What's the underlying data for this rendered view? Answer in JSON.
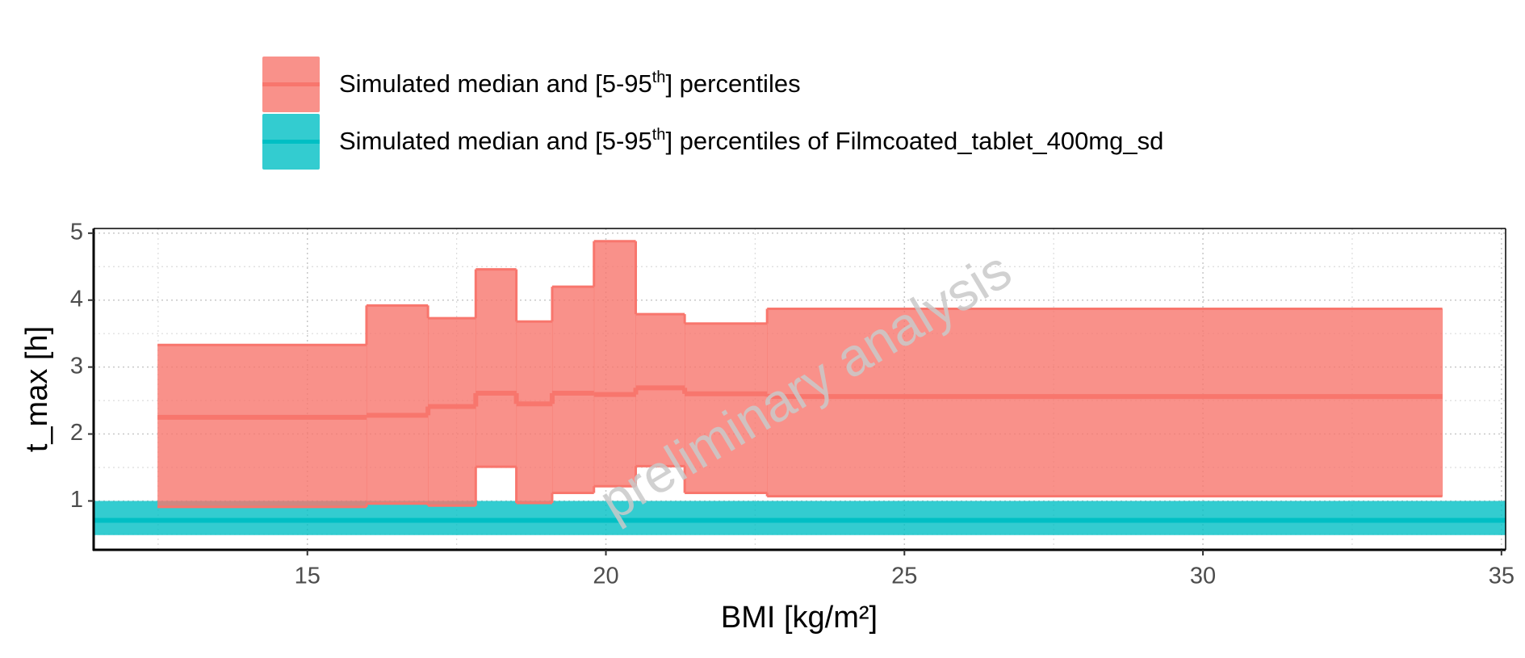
{
  "chart_data": {
    "type": "step_ribbon",
    "x_label": "BMI [kg/m²]",
    "y_label": "t_max [h]",
    "watermark": "preliminary analysis",
    "xlim": [
      11.42,
      35.07
    ],
    "ylim": [
      0.27,
      5.07
    ],
    "xticks": [
      15,
      20,
      25,
      30,
      35
    ],
    "yticks": [
      1,
      2,
      3,
      4,
      5
    ],
    "x_minor_grid": [
      12.5,
      17.5,
      22.5,
      27.5,
      32.5
    ],
    "y_minor_grid": [
      0.5,
      1.5,
      2.5,
      3.5,
      4.5
    ],
    "grid": true,
    "legend_position": "top",
    "x_edges": [
      12.49,
      15.99,
      17.02,
      17.82,
      18.5,
      19.1,
      19.8,
      20.5,
      21.32,
      22.7,
      34.01
    ],
    "series": [
      {
        "name": [
          "Simulated median and [5-95",
          "th",
          "] percentiles"
        ],
        "color": "#f8766d",
        "upper": [
          3.33,
          3.92,
          3.73,
          4.46,
          3.68,
          4.2,
          4.88,
          3.79,
          3.65,
          3.87
        ],
        "median": [
          2.25,
          2.28,
          2.41,
          2.61,
          2.45,
          2.61,
          2.59,
          2.69,
          2.6,
          2.56
        ],
        "lower": [
          0.91,
          0.96,
          0.93,
          1.51,
          0.97,
          1.12,
          1.22,
          1.52,
          1.12,
          1.07
        ]
      },
      {
        "name": [
          "Simulated median and [5-95",
          "th",
          "] percentiles of Filmcoated_tablet_400mg_sd"
        ],
        "color": "#00bfc4",
        "upper": 1.0,
        "median": 0.71,
        "lower": 0.49
      }
    ]
  }
}
